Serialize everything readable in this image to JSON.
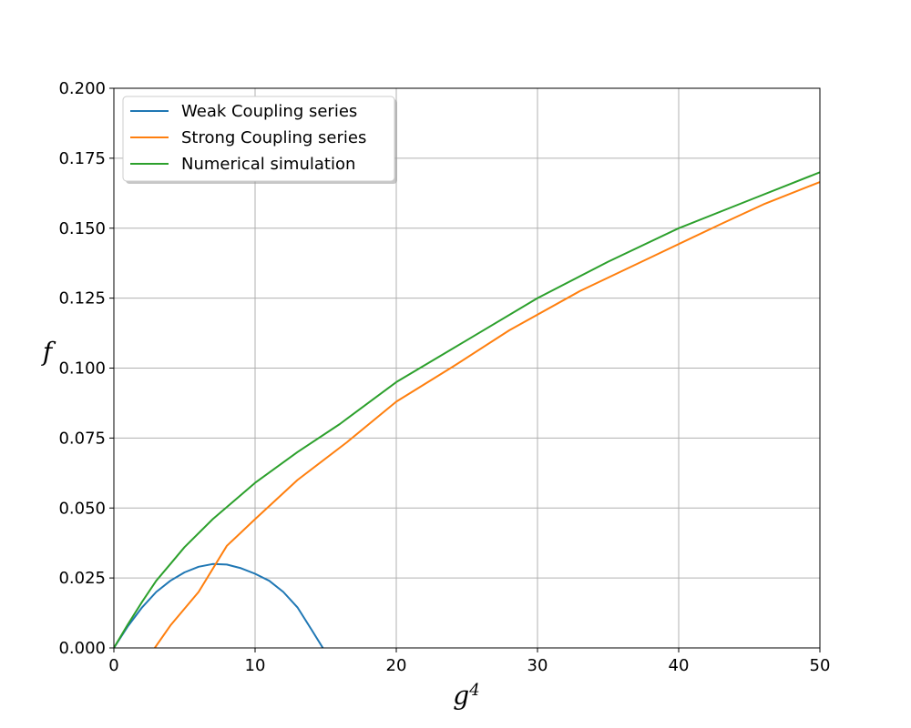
{
  "chart_data": {
    "type": "line",
    "title": "",
    "xlabel": "g",
    "xlabel_superscript": "4",
    "ylabel": "f",
    "xlim": [
      0,
      50
    ],
    "ylim": [
      0,
      0.2
    ],
    "x_ticks": [
      0,
      10,
      20,
      30,
      40,
      50
    ],
    "x_tick_labels": [
      "0",
      "10",
      "20",
      "30",
      "40",
      "50"
    ],
    "y_ticks": [
      0.0,
      0.025,
      0.05,
      0.075,
      0.1,
      0.125,
      0.15,
      0.175,
      0.2
    ],
    "y_tick_labels": [
      "0.000",
      "0.025",
      "0.050",
      "0.075",
      "0.100",
      "0.125",
      "0.150",
      "0.175",
      "0.200"
    ],
    "grid": true,
    "legend_position": "upper-left",
    "series": [
      {
        "name": "Weak Coupling series",
        "color": "#1f77b4",
        "points": [
          [
            0,
            0
          ],
          [
            1,
            0.0078
          ],
          [
            2,
            0.0145
          ],
          [
            3,
            0.02
          ],
          [
            4,
            0.024
          ],
          [
            5,
            0.027
          ],
          [
            6,
            0.029
          ],
          [
            7,
            0.03
          ],
          [
            8,
            0.0298
          ],
          [
            9,
            0.0285
          ],
          [
            10,
            0.0265
          ],
          [
            11,
            0.024
          ],
          [
            12,
            0.02
          ],
          [
            13,
            0.0145
          ],
          [
            14,
            0.0065
          ],
          [
            14.8,
            0.0
          ]
        ]
      },
      {
        "name": "Strong Coupling series",
        "color": "#ff7f0e",
        "points": [
          [
            2.9,
            0
          ],
          [
            4,
            0.008
          ],
          [
            6,
            0.02
          ],
          [
            8,
            0.0365
          ],
          [
            10,
            0.046
          ],
          [
            13,
            0.06
          ],
          [
            16.5,
            0.0735
          ],
          [
            20,
            0.088
          ],
          [
            24,
            0.1005
          ],
          [
            28,
            0.1135
          ],
          [
            33,
            0.1275
          ],
          [
            38,
            0.1395
          ],
          [
            43,
            0.1515
          ],
          [
            46,
            0.1585
          ],
          [
            50,
            0.1665
          ]
        ]
      },
      {
        "name": "Numerical simulation",
        "color": "#2ca02c",
        "points": [
          [
            0,
            0
          ],
          [
            1,
            0.0085
          ],
          [
            2,
            0.0165
          ],
          [
            3,
            0.024
          ],
          [
            4,
            0.03
          ],
          [
            5,
            0.036
          ],
          [
            7,
            0.046
          ],
          [
            10,
            0.059
          ],
          [
            13,
            0.07
          ],
          [
            16,
            0.08
          ],
          [
            20,
            0.095
          ],
          [
            25,
            0.11
          ],
          [
            30,
            0.125
          ],
          [
            35,
            0.138
          ],
          [
            40,
            0.15
          ],
          [
            45,
            0.16
          ],
          [
            50,
            0.17
          ]
        ]
      }
    ]
  }
}
